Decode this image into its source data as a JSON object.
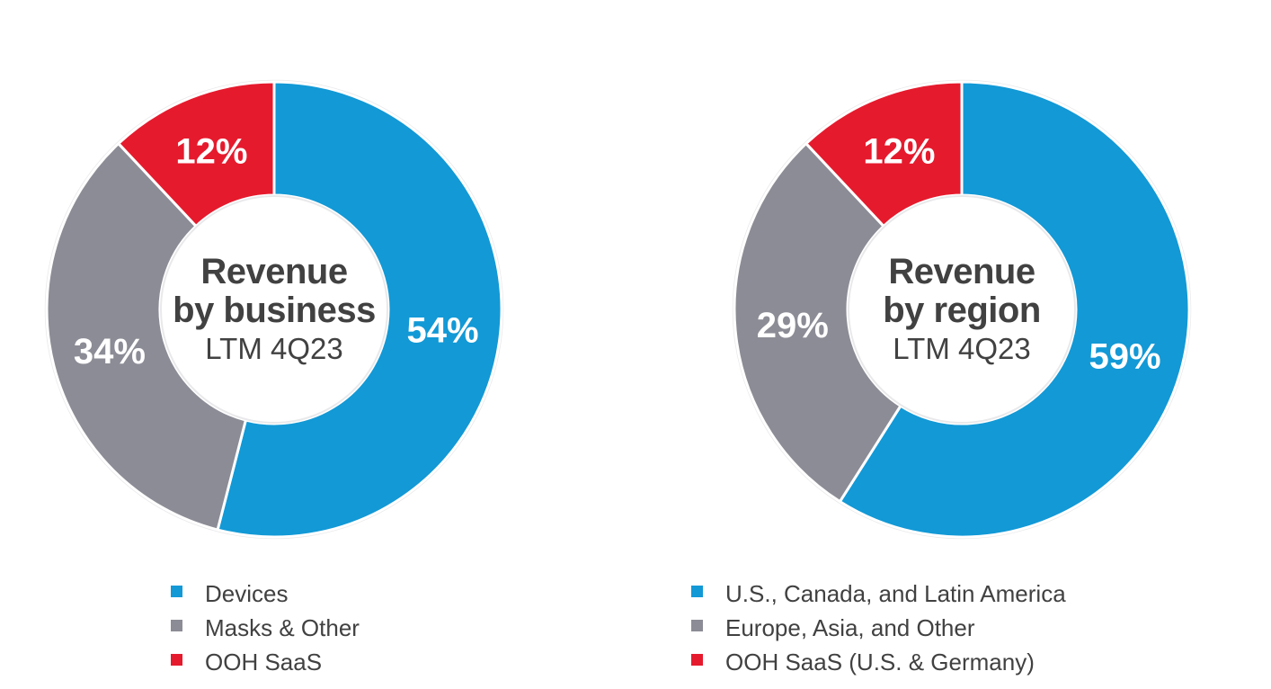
{
  "page": {
    "background_color": "#ffffff",
    "text_color": "#414141"
  },
  "colors": {
    "blue": "#1299D6",
    "gray": "#8C8C96",
    "red": "#E61A2D",
    "slice_divider": "#FFFFFF",
    "ring_halo": "#E9E9EB",
    "label_on_slice": "#FFFFFF"
  },
  "chart_data": [
    {
      "type": "pie",
      "donut": true,
      "title": "Revenue by business",
      "title_lines": [
        "Revenue",
        "by business"
      ],
      "subtitle": "LTM 4Q23",
      "units": "%",
      "start_angle_deg_clockwise_from_top": 0,
      "direction": "clockwise",
      "legend_position": "bottom",
      "slices": [
        {
          "label": "Devices",
          "value": 54,
          "display": "54%",
          "color": "#1299D6"
        },
        {
          "label": "Masks & Other",
          "value": 34,
          "display": "34%",
          "color": "#8C8C96"
        },
        {
          "label": "OOH SaaS",
          "value": 12,
          "display": "12%",
          "color": "#E61A2D"
        }
      ]
    },
    {
      "type": "pie",
      "donut": true,
      "title": "Revenue by region",
      "title_lines": [
        "Revenue",
        "by region"
      ],
      "subtitle": "LTM 4Q23",
      "units": "%",
      "start_angle_deg_clockwise_from_top": 0,
      "direction": "clockwise",
      "legend_position": "bottom",
      "slices": [
        {
          "label": "U.S., Canada, and Latin America",
          "value": 59,
          "display": "59%",
          "color": "#1299D6"
        },
        {
          "label": "Europe, Asia, and Other",
          "value": 29,
          "display": "29%",
          "color": "#8C8C96"
        },
        {
          "label": "OOH SaaS (U.S. & Germany)",
          "value": 12,
          "display": "12%",
          "color": "#E61A2D"
        }
      ]
    }
  ]
}
